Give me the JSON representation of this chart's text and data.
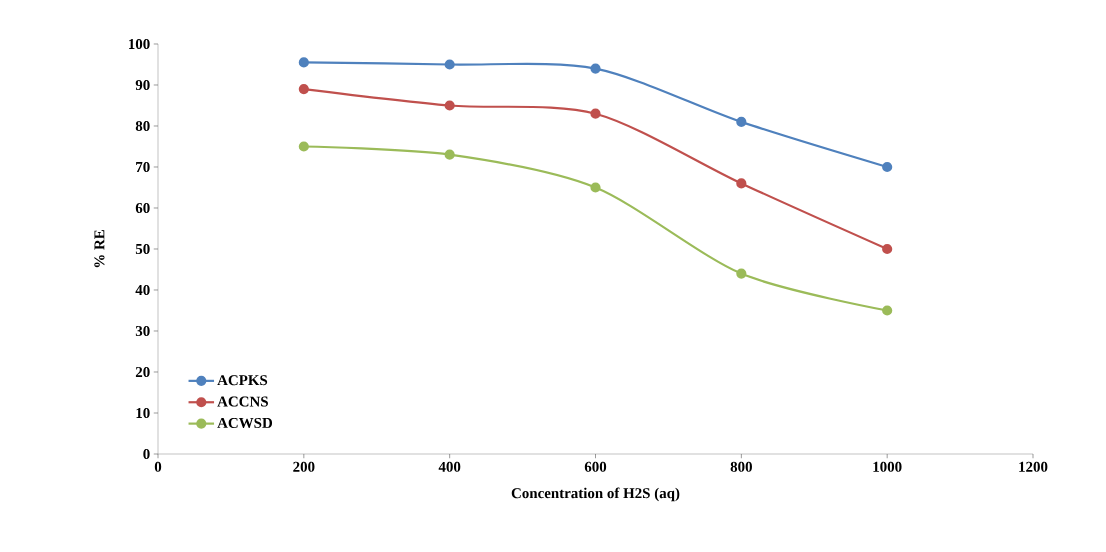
{
  "chart_data": {
    "type": "line",
    "xlabel": "Concentration of H2S (aq)",
    "ylabel": "% RE",
    "x": [
      200,
      400,
      600,
      800,
      1000
    ],
    "series": [
      {
        "name": "ACPKS",
        "color": "#4f81bd",
        "values": [
          95.5,
          95,
          94,
          81,
          70
        ]
      },
      {
        "name": "ACCNS",
        "color": "#c0504d",
        "values": [
          89,
          85,
          83,
          66,
          50
        ]
      },
      {
        "name": "ACWSD",
        "color": "#9bbb59",
        "values": [
          75,
          73,
          65,
          44,
          35
        ]
      }
    ],
    "xlim": [
      0,
      1200
    ],
    "xticks": [
      0,
      200,
      400,
      600,
      800,
      1000,
      1200
    ],
    "ylim": [
      0,
      100
    ],
    "yticks": [
      0,
      10,
      20,
      30,
      40,
      50,
      60,
      70,
      80,
      90,
      100
    ],
    "grid": false,
    "legend": "bottom left",
    "marker": "circle",
    "line_style": "solid"
  }
}
